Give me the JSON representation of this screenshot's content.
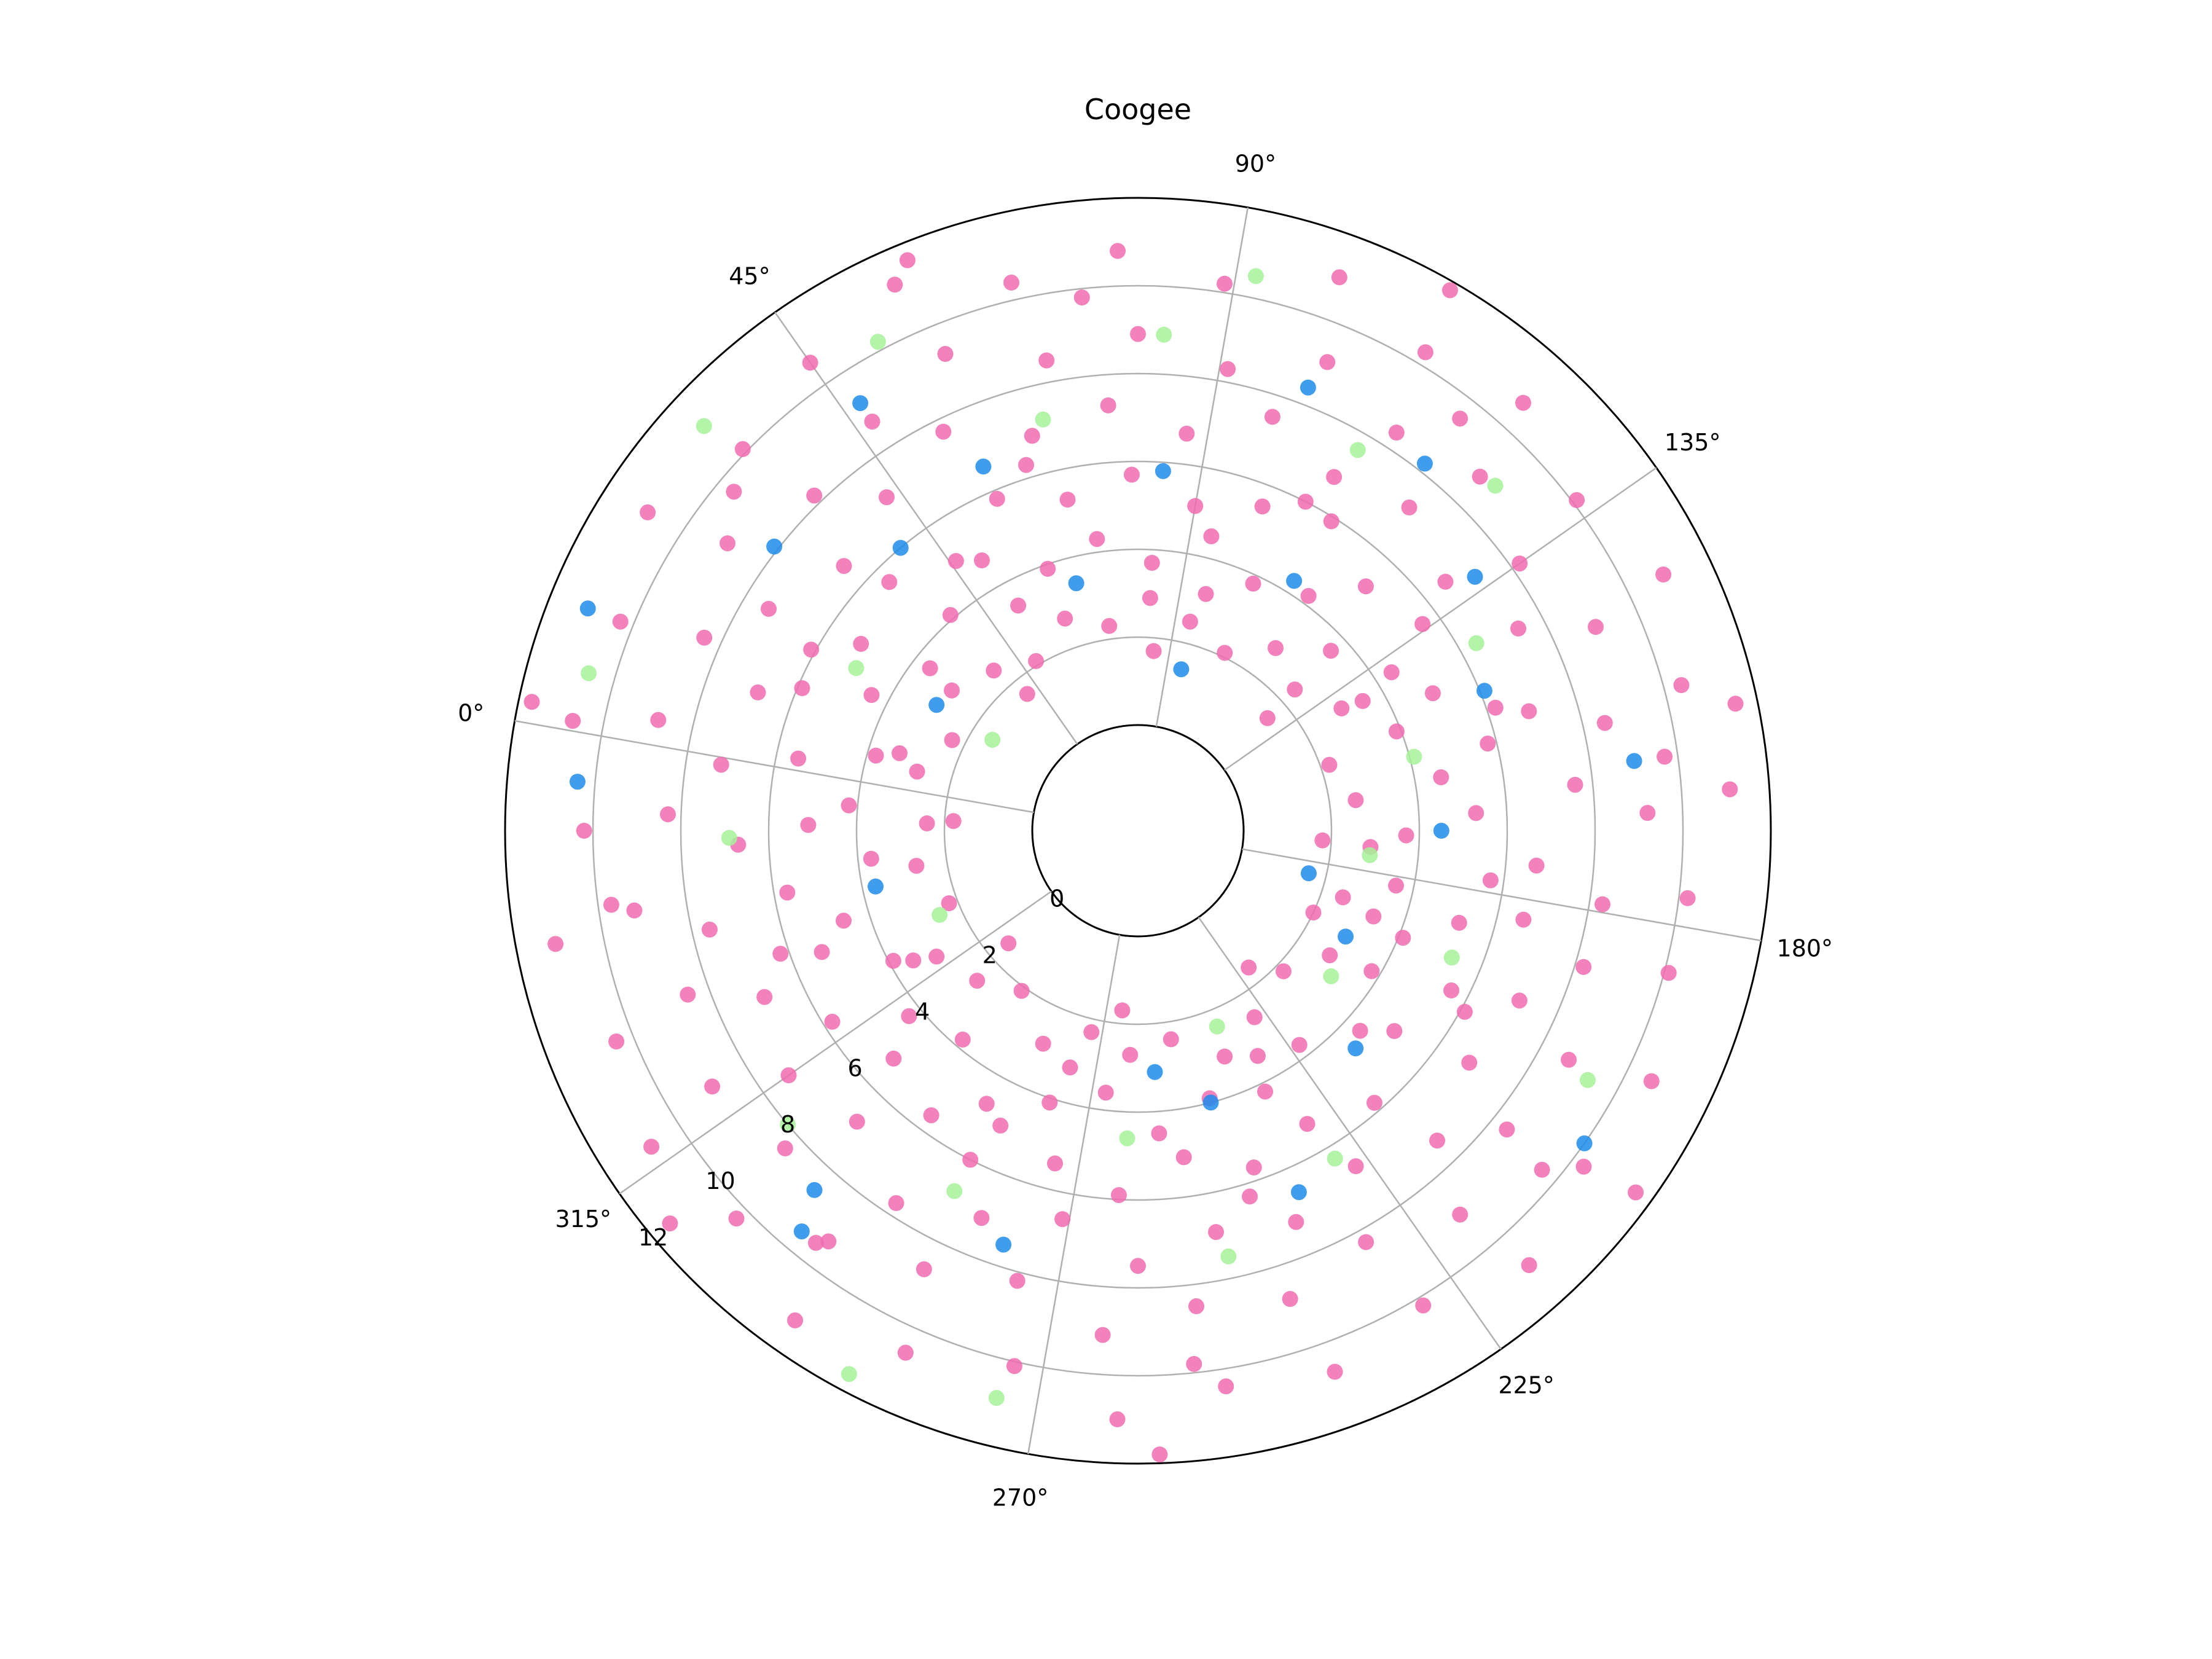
{
  "chart_data": {
    "type": "scatter",
    "projection": "polar",
    "title": "Coogee",
    "theta_unit": "degrees",
    "theta_zero_location": "west",
    "theta_direction": "counterclockwise-on-screen",
    "theta_ticks": [
      "0°",
      "45°",
      "90°",
      "135°",
      "180°",
      "225°",
      "270°",
      "315°"
    ],
    "theta_tick_values": [
      0,
      45,
      90,
      135,
      180,
      225,
      270,
      315
    ],
    "theta_grid_offset_deg": 10,
    "r_ticks": [
      "0",
      "2",
      "4",
      "6",
      "8",
      "10",
      "12"
    ],
    "r_tick_values": [
      0,
      2,
      4,
      6,
      8,
      10,
      12
    ],
    "r_tick_angle_deg": 40,
    "rlim": [
      0,
      12
    ],
    "r_origin": -3,
    "grid": true,
    "legend": "none",
    "series": [
      {
        "color": "#f06bb0",
        "points": [
          [
            188,
            2.5
          ],
          [
            195,
            2.0
          ],
          [
            203,
            2.8
          ],
          [
            214,
            2.2
          ],
          [
            228,
            2.6
          ],
          [
            239,
            3.1
          ],
          [
            251,
            2.4
          ],
          [
            262,
            2.7
          ],
          [
            273,
            2.3
          ],
          [
            284,
            2.9
          ],
          [
            296,
            2.1
          ],
          [
            307,
            2.6
          ],
          [
            318,
            3.0
          ],
          [
            329,
            2.2
          ],
          [
            341,
            2.7
          ],
          [
            352,
            2.4
          ],
          [
            5,
            2.8
          ],
          [
            16,
            2.3
          ],
          [
            27,
            2.9
          ],
          [
            38,
            2.5
          ],
          [
            49,
            2.1
          ],
          [
            61,
            2.7
          ],
          [
            72,
            2.3
          ],
          [
            83,
            2.9
          ],
          [
            94,
            2.5
          ],
          [
            106,
            2.1
          ],
          [
            117,
            2.8
          ],
          [
            128,
            2.4
          ],
          [
            139,
            3.0
          ],
          [
            151,
            2.2
          ],
          [
            162,
            2.6
          ],
          [
            174,
            2.9
          ],
          [
            182,
            3.6
          ],
          [
            192,
            4.1
          ],
          [
            201,
            3.8
          ],
          [
            212,
            4.4
          ],
          [
            223,
            3.7
          ],
          [
            234,
            4.2
          ],
          [
            245,
            3.9
          ],
          [
            256,
            4.5
          ],
          [
            267,
            3.6
          ],
          [
            278,
            4.1
          ],
          [
            289,
            4.7
          ],
          [
            300,
            3.8
          ],
          [
            311,
            4.3
          ],
          [
            322,
            3.9
          ],
          [
            333,
            4.6
          ],
          [
            344,
            3.7
          ],
          [
            355,
            4.2
          ],
          [
            6,
            3.8
          ],
          [
            17,
            4.4
          ],
          [
            28,
            3.6
          ],
          [
            39,
            4.1
          ],
          [
            50,
            4.7
          ],
          [
            61,
            3.9
          ],
          [
            72,
            4.3
          ],
          [
            83,
            3.7
          ],
          [
            94,
            4.5
          ],
          [
            105,
            3.8
          ],
          [
            116,
            4.2
          ],
          [
            127,
            3.6
          ],
          [
            138,
            4.4
          ],
          [
            149,
            3.9
          ],
          [
            160,
            4.6
          ],
          [
            171,
            3.7
          ],
          [
            186,
            5.2
          ],
          [
            197,
            5.6
          ],
          [
            208,
            5.0
          ],
          [
            219,
            5.8
          ],
          [
            230,
            5.3
          ],
          [
            241,
            5.7
          ],
          [
            252,
            5.1
          ],
          [
            263,
            5.9
          ],
          [
            274,
            5.4
          ],
          [
            285,
            5.0
          ],
          [
            296,
            5.6
          ],
          [
            307,
            5.2
          ],
          [
            318,
            5.8
          ],
          [
            329,
            5.3
          ],
          [
            340,
            5.7
          ],
          [
            351,
            5.1
          ],
          [
            2,
            5.5
          ],
          [
            13,
            5.9
          ],
          [
            24,
            5.2
          ],
          [
            35,
            5.6
          ],
          [
            46,
            5.0
          ],
          [
            57,
            5.8
          ],
          [
            68,
            5.3
          ],
          [
            79,
            5.7
          ],
          [
            90,
            5.1
          ],
          [
            101,
            5.5
          ],
          [
            112,
            5.9
          ],
          [
            123,
            5.2
          ],
          [
            134,
            5.6
          ],
          [
            145,
            5.0
          ],
          [
            156,
            5.8
          ],
          [
            167,
            5.3
          ],
          [
            178,
            5.7
          ],
          [
            183,
            6.6
          ],
          [
            194,
            7.1
          ],
          [
            205,
            6.8
          ],
          [
            216,
            7.4
          ],
          [
            227,
            6.7
          ],
          [
            238,
            7.2
          ],
          [
            249,
            6.9
          ],
          [
            260,
            7.5
          ],
          [
            271,
            6.6
          ],
          [
            282,
            7.1
          ],
          [
            293,
            7.7
          ],
          [
            304,
            6.8
          ],
          [
            315,
            7.3
          ],
          [
            326,
            6.9
          ],
          [
            337,
            7.6
          ],
          [
            348,
            6.7
          ],
          [
            359,
            7.2
          ],
          [
            10,
            6.8
          ],
          [
            21,
            7.4
          ],
          [
            32,
            6.6
          ],
          [
            43,
            7.1
          ],
          [
            54,
            7.7
          ],
          [
            65,
            6.9
          ],
          [
            76,
            7.3
          ],
          [
            87,
            6.7
          ],
          [
            98,
            7.5
          ],
          [
            109,
            6.8
          ],
          [
            120,
            7.2
          ],
          [
            131,
            6.6
          ],
          [
            142,
            7.4
          ],
          [
            153,
            6.9
          ],
          [
            164,
            7.6
          ],
          [
            175,
            6.7
          ],
          [
            187,
            8.2
          ],
          [
            198,
            8.7
          ],
          [
            209,
            8.4
          ],
          [
            220,
            9.0
          ],
          [
            231,
            8.3
          ],
          [
            242,
            8.8
          ],
          [
            253,
            8.5
          ],
          [
            264,
            9.1
          ],
          [
            275,
            8.2
          ],
          [
            286,
            8.7
          ],
          [
            297,
            9.3
          ],
          [
            308,
            8.4
          ],
          [
            319,
            8.9
          ],
          [
            330,
            8.5
          ],
          [
            341,
            9.2
          ],
          [
            352,
            8.3
          ],
          [
            3,
            8.8
          ],
          [
            14,
            8.4
          ],
          [
            25,
            9.0
          ],
          [
            36,
            8.2
          ],
          [
            47,
            8.7
          ],
          [
            58,
            9.3
          ],
          [
            69,
            8.5
          ],
          [
            80,
            8.9
          ],
          [
            91,
            8.3
          ],
          [
            102,
            9.1
          ],
          [
            113,
            8.4
          ],
          [
            124,
            8.8
          ],
          [
            135,
            8.2
          ],
          [
            146,
            9.0
          ],
          [
            157,
            8.5
          ],
          [
            168,
            9.2
          ],
          [
            179,
            8.3
          ],
          [
            185,
            10.1
          ],
          [
            196,
            10.6
          ],
          [
            207,
            10.3
          ],
          [
            218,
            10.9
          ],
          [
            229,
            10.2
          ],
          [
            240,
            10.7
          ],
          [
            251,
            10.4
          ],
          [
            262,
            11.0
          ],
          [
            273,
            10.1
          ],
          [
            284,
            10.6
          ],
          [
            295,
            11.2
          ],
          [
            306,
            10.3
          ],
          [
            317,
            10.8
          ],
          [
            328,
            10.4
          ],
          [
            339,
            11.1
          ],
          [
            350,
            10.2
          ],
          [
            1,
            10.7
          ],
          [
            12,
            10.3
          ],
          [
            23,
            10.9
          ],
          [
            34,
            10.1
          ],
          [
            45,
            10.6
          ],
          [
            56,
            11.2
          ],
          [
            67,
            10.4
          ],
          [
            78,
            10.8
          ],
          [
            89,
            10.2
          ],
          [
            100,
            11.0
          ],
          [
            111,
            10.3
          ],
          [
            122,
            10.7
          ],
          [
            133,
            10.1
          ],
          [
            144,
            10.9
          ],
          [
            155,
            10.4
          ],
          [
            166,
            11.1
          ],
          [
            177,
            10.2
          ],
          [
            190,
            3.3
          ],
          [
            232,
            3.4
          ],
          [
            276,
            3.2
          ],
          [
            320,
            3.5
          ],
          [
            8,
            3.3
          ],
          [
            52,
            3.4
          ],
          [
            96,
            3.2
          ],
          [
            140,
            3.5
          ],
          [
            199,
            6.1
          ],
          [
            243,
            6.3
          ],
          [
            287,
            6.0
          ],
          [
            331,
            6.2
          ],
          [
            19,
            6.1
          ],
          [
            63,
            6.3
          ],
          [
            107,
            6.0
          ],
          [
            151,
            6.2
          ],
          [
            210,
            9.6
          ],
          [
            254,
            9.8
          ],
          [
            298,
            9.5
          ],
          [
            342,
            9.7
          ],
          [
            30,
            9.6
          ],
          [
            74,
            9.8
          ],
          [
            118,
            9.5
          ],
          [
            162,
            9.7
          ],
          [
            221,
            1.6
          ],
          [
            265,
            1.7
          ],
          [
            309,
            1.5
          ],
          [
            353,
            1.8
          ],
          [
            41,
            1.6
          ],
          [
            85,
            1.7
          ],
          [
            129,
            1.5
          ],
          [
            173,
            1.8
          ],
          [
            206,
            11.6
          ],
          [
            258,
            11.8
          ],
          [
            310,
            11.5
          ],
          [
            2,
            11.7
          ],
          [
            58,
            11.6
          ],
          [
            110,
            11.8
          ],
          [
            158,
            11.5
          ]
        ]
      },
      {
        "color": "#1f8ceb",
        "points": [
          [
            184,
            1.6
          ],
          [
            197,
            2.9
          ],
          [
            215,
            4.6
          ],
          [
            236,
            6.6
          ],
          [
            256,
            3.1
          ],
          [
            278,
            7.5
          ],
          [
            302,
            8.6
          ],
          [
            338,
            3.7
          ],
          [
            12,
            11.1
          ],
          [
            355,
            10.4
          ],
          [
            28,
            8.1
          ],
          [
            40,
            6.0
          ],
          [
            57,
            6.6
          ],
          [
            66,
            3.4
          ],
          [
            84,
            5.8
          ],
          [
            95,
            1.4
          ],
          [
            112,
            4.3
          ],
          [
            118,
            8.2
          ],
          [
            148,
            6.1
          ],
          [
            162,
            9.0
          ],
          [
            170,
            4.5
          ],
          [
            205,
            10.0
          ],
          [
            245,
            4.0
          ],
          [
            300,
            9.5
          ],
          [
            47,
            9.2
          ],
          [
            101,
            8.4
          ],
          [
            133,
            7.2
          ],
          [
            22,
            3.0
          ]
        ]
      },
      {
        "color": "#a6f29a",
        "points": [
          [
            192,
            5.3
          ],
          [
            207,
            3.1
          ],
          [
            229,
            6.3
          ],
          [
            238,
            2.4
          ],
          [
            262,
            4.6
          ],
          [
            274,
            10.9
          ],
          [
            288,
            11.6
          ],
          [
            310,
            8.0
          ],
          [
            327,
            2.5
          ],
          [
            349,
            6.9
          ],
          [
            6,
            10.6
          ],
          [
            20,
            5.0
          ],
          [
            33,
            11.1
          ],
          [
            52,
            10.2
          ],
          [
            67,
            7.2
          ],
          [
            83,
            8.9
          ],
          [
            92,
            10.5
          ],
          [
            110,
            7.6
          ],
          [
            126,
            8.9
          ],
          [
            141,
            6.4
          ],
          [
            155,
            4.1
          ],
          [
            176,
            2.9
          ],
          [
            199,
            9.3
          ],
          [
            248,
            7.5
          ],
          [
            287,
            6.8
          ],
          [
            22,
            1.5
          ]
        ]
      }
    ]
  }
}
